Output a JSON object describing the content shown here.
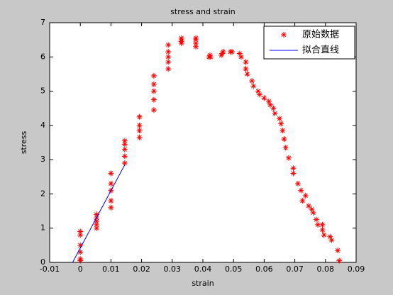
{
  "chart_data": {
    "type": "scatter",
    "title": "stress and strain",
    "xlabel": "strain",
    "ylabel": "stress",
    "xlim": [
      -0.01,
      0.09
    ],
    "xticks": [
      -0.01,
      0,
      0.01,
      0.02,
      0.03,
      0.04,
      0.05,
      0.06,
      0.07,
      0.08,
      0.09
    ],
    "ylim": [
      0,
      7
    ],
    "yticks": [
      0,
      1,
      2,
      3,
      4,
      5,
      6,
      7
    ],
    "legend": "northeast",
    "series": [
      {
        "name": "原始数据",
        "color": "#ff0000",
        "style": "marker",
        "x": [
          0,
          0,
          0,
          0,
          0,
          0,
          0.0053,
          0.0053,
          0.0053,
          0.0053,
          0.0053,
          0.01,
          0.01,
          0.01,
          0.01,
          0.01,
          0.0145,
          0.0145,
          0.0145,
          0.0145,
          0.0145,
          0.0193,
          0.0193,
          0.0193,
          0.0193,
          0.024,
          0.024,
          0.024,
          0.024,
          0.024,
          0.0287,
          0.0287,
          0.0287,
          0.0287,
          0.0287,
          0.033,
          0.033,
          0.033,
          0.033,
          0.0377,
          0.0377,
          0.0377,
          0.0377,
          0.042,
          0.0425,
          0.0423,
          0.046,
          0.0463,
          0.0466,
          0.049,
          0.0495,
          0.052,
          0.0525,
          0.054,
          0.054,
          0.0545,
          0.056,
          0.0565,
          0.058,
          0.0585,
          0.06,
          0.0615,
          0.062,
          0.063,
          0.0635,
          0.065,
          0.0655,
          0.066,
          0.0665,
          0.067,
          0.068,
          0.0695,
          0.0695,
          0.071,
          0.072,
          0.0725,
          0.0735,
          0.0745,
          0.0755,
          0.076,
          0.077,
          0.0775,
          0.079,
          0.079,
          0.0795,
          0.0815,
          0.082,
          0.084,
          0.0845
        ],
        "values": [
          0.05,
          0.1,
          0.3,
          0.5,
          0.8,
          0.9,
          1.0,
          1.1,
          1.2,
          1.3,
          1.4,
          1.6,
          1.8,
          2.1,
          2.3,
          2.6,
          2.9,
          3.1,
          3.3,
          3.45,
          3.55,
          3.65,
          3.85,
          4.0,
          4.25,
          4.45,
          4.75,
          5.0,
          5.2,
          5.45,
          5.65,
          5.85,
          6.0,
          6.15,
          6.35,
          6.4,
          6.45,
          6.5,
          6.55,
          6.3,
          6.4,
          6.5,
          6.55,
          6.0,
          6.0,
          6.05,
          6.05,
          6.1,
          6.15,
          6.15,
          6.15,
          6.1,
          6.0,
          5.85,
          5.65,
          5.5,
          5.3,
          5.15,
          5.0,
          4.9,
          4.8,
          4.7,
          4.6,
          4.5,
          4.35,
          4.2,
          4.05,
          3.85,
          3.6,
          3.35,
          3.05,
          2.75,
          2.6,
          2.3,
          2.1,
          1.8,
          1.95,
          1.65,
          1.55,
          1.45,
          1.25,
          1.1,
          1.1,
          0.95,
          0.8,
          0.75,
          0.65,
          0.35,
          0.05
        ]
      },
      {
        "name": "拟合直线",
        "color": "#0000ff",
        "style": "line",
        "x": [
          -0.0025,
          0.0145
        ],
        "values": [
          0,
          2.85
        ]
      }
    ]
  }
}
